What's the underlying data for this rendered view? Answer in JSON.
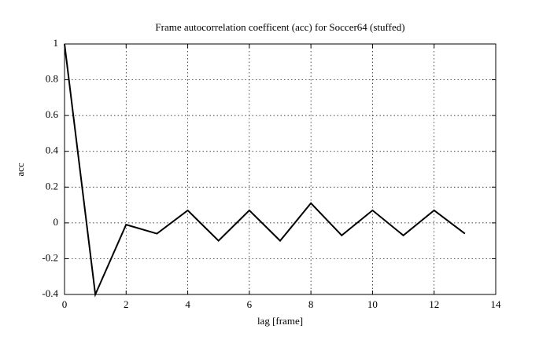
{
  "chart_data": {
    "type": "line",
    "title": "Frame autocorrelation coefficent (acc) for Soccer64 (stuffed)",
    "xlabel": "lag [frame]",
    "ylabel": "acc",
    "x": [
      0,
      1,
      2,
      3,
      4,
      5,
      6,
      7,
      8,
      9,
      10,
      11,
      12,
      13
    ],
    "values": [
      1,
      -0.4,
      -0.01,
      -0.06,
      0.07,
      -0.1,
      0.07,
      -0.1,
      0.11,
      -0.07,
      0.07,
      -0.07,
      0.07,
      -0.06
    ],
    "color": "#000000",
    "xlim": [
      0,
      14
    ],
    "xticks": [
      0,
      2,
      4,
      6,
      8,
      10,
      12,
      14
    ],
    "ylim": [
      -0.4,
      1
    ],
    "yticks": [
      -0.4,
      -0.2,
      0,
      0.2,
      0.4,
      0.6,
      0.8,
      1
    ],
    "grid": true
  }
}
